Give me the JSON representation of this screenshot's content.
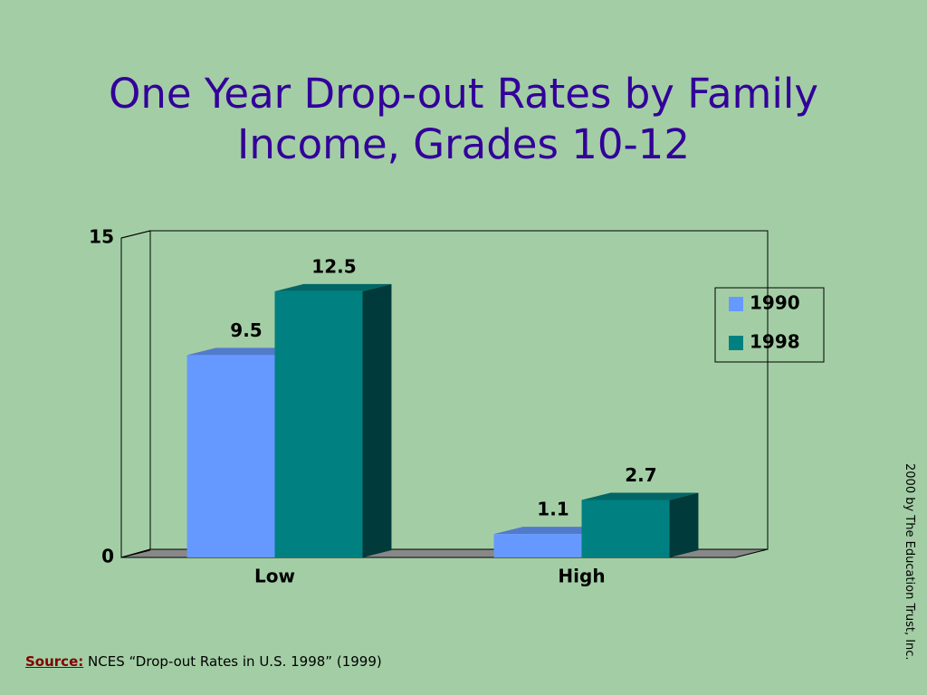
{
  "chart_data": {
    "type": "bar3d",
    "title": "One Year Drop-out Rates by Family Income, Grades 10-12",
    "categories": [
      "Low",
      "High"
    ],
    "series": [
      {
        "name": "1990",
        "color": "#6699ff",
        "values": [
          9.5,
          1.1
        ]
      },
      {
        "name": "1998",
        "color": "#008080",
        "values": [
          12.5,
          2.7
        ]
      }
    ],
    "ylim": [
      0,
      15
    ],
    "yticks": [
      0,
      15
    ],
    "legend": "right",
    "source_label": "Source:",
    "source_text": "NCES “Drop-out Rates in U.S. 1998” (1999)",
    "credit": "2000 by The Education Trust, Inc."
  }
}
